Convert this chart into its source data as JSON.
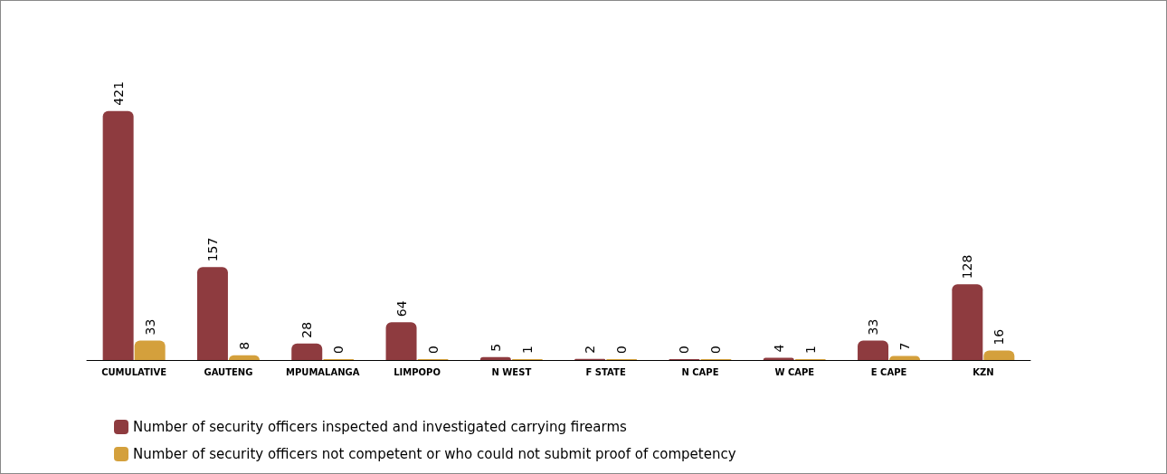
{
  "chart_data": {
    "type": "bar",
    "categories": [
      "CUMULATIVE",
      "GAUTENG",
      "MPUMALANGA",
      "LIMPOPO",
      "N WEST",
      "F STATE",
      "N CAPE",
      "W CAPE",
      "E CAPE",
      "KZN"
    ],
    "series": [
      {
        "name": "Number of security officers inspected and investigated carrying firearms",
        "color": "#8e3b3f",
        "values": [
          421,
          157,
          28,
          64,
          5,
          2,
          0,
          4,
          33,
          128
        ]
      },
      {
        "name": "Number of security officers not competent or who could not submit proof of competency",
        "color": "#d4a03c",
        "values": [
          33,
          8,
          0,
          0,
          1,
          0,
          0,
          1,
          7,
          16
        ]
      }
    ],
    "data_labels": true,
    "legend": "bottom left"
  }
}
